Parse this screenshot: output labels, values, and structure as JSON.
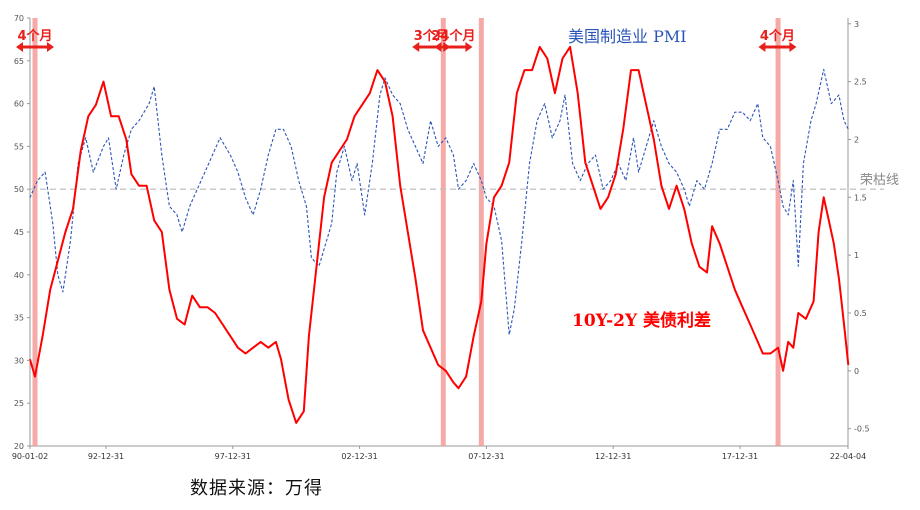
{
  "chart_data": {
    "type": "line",
    "source": "数据来源：万得",
    "x_ticks": [
      "90-01-02",
      "92-12-31",
      "97-12-31",
      "02-12-31",
      "07-12-31",
      "12-12-31",
      "17-12-31",
      "22-04-04"
    ],
    "x_range": [
      "1990-01-02",
      "2022-04-04"
    ],
    "y_left": {
      "ticks": [
        20,
        25,
        30,
        35,
        40,
        45,
        50,
        55,
        60,
        65,
        70
      ],
      "range": [
        20,
        70
      ]
    },
    "y_right": {
      "ticks": [
        -0.5,
        0,
        0.5,
        1,
        1.5,
        2,
        2.5,
        3
      ],
      "range": [
        -0.65,
        3.05
      ]
    },
    "threshold": {
      "value": 50,
      "label": "荣枯线",
      "color": "#bbbbbb"
    },
    "series": [
      {
        "name": "美国制造业 PMI",
        "axis": "left",
        "color": "#2b55b8",
        "style": "dashed",
        "points": [
          [
            1990.0,
            49
          ],
          [
            1990.3,
            51
          ],
          [
            1990.6,
            52
          ],
          [
            1990.9,
            46
          ],
          [
            1991.1,
            40
          ],
          [
            1991.3,
            38
          ],
          [
            1991.6,
            44
          ],
          [
            1991.9,
            53
          ],
          [
            1992.2,
            56
          ],
          [
            1992.5,
            52
          ],
          [
            1992.9,
            55
          ],
          [
            1993.1,
            56
          ],
          [
            1993.4,
            50
          ],
          [
            1993.7,
            54
          ],
          [
            1994.0,
            57
          ],
          [
            1994.3,
            58
          ],
          [
            1994.7,
            60
          ],
          [
            1994.9,
            62
          ],
          [
            1995.2,
            54
          ],
          [
            1995.5,
            48
          ],
          [
            1995.8,
            47
          ],
          [
            1996.0,
            45
          ],
          [
            1996.3,
            48
          ],
          [
            1996.6,
            50
          ],
          [
            1996.9,
            52
          ],
          [
            1997.2,
            54
          ],
          [
            1997.5,
            56
          ],
          [
            1997.9,
            54
          ],
          [
            1998.2,
            52
          ],
          [
            1998.5,
            49
          ],
          [
            1998.8,
            47
          ],
          [
            1999.1,
            50
          ],
          [
            1999.4,
            54
          ],
          [
            1999.7,
            57
          ],
          [
            2000.0,
            57
          ],
          [
            2000.3,
            55
          ],
          [
            2000.6,
            51
          ],
          [
            2000.9,
            48
          ],
          [
            2001.1,
            42
          ],
          [
            2001.4,
            41
          ],
          [
            2001.7,
            44
          ],
          [
            2001.9,
            46
          ],
          [
            2002.1,
            52
          ],
          [
            2002.4,
            55
          ],
          [
            2002.7,
            51
          ],
          [
            2002.9,
            53
          ],
          [
            2003.2,
            47
          ],
          [
            2003.5,
            53
          ],
          [
            2003.8,
            61
          ],
          [
            2004.0,
            63
          ],
          [
            2004.3,
            61
          ],
          [
            2004.6,
            60
          ],
          [
            2004.9,
            57
          ],
          [
            2005.2,
            55
          ],
          [
            2005.5,
            53
          ],
          [
            2005.8,
            58
          ],
          [
            2006.1,
            55
          ],
          [
            2006.4,
            56
          ],
          [
            2006.7,
            54
          ],
          [
            2006.9,
            50
          ],
          [
            2007.2,
            51
          ],
          [
            2007.5,
            53
          ],
          [
            2007.8,
            51
          ],
          [
            2008.0,
            49
          ],
          [
            2008.3,
            48
          ],
          [
            2008.6,
            44
          ],
          [
            2008.9,
            33
          ],
          [
            2009.1,
            36
          ],
          [
            2009.4,
            44
          ],
          [
            2009.7,
            53
          ],
          [
            2010.0,
            58
          ],
          [
            2010.3,
            60
          ],
          [
            2010.6,
            56
          ],
          [
            2010.9,
            58
          ],
          [
            2011.1,
            61
          ],
          [
            2011.4,
            53
          ],
          [
            2011.7,
            51
          ],
          [
            2012.0,
            53
          ],
          [
            2012.3,
            54
          ],
          [
            2012.6,
            50
          ],
          [
            2012.9,
            51
          ],
          [
            2013.2,
            53
          ],
          [
            2013.5,
            51
          ],
          [
            2013.8,
            56
          ],
          [
            2014.0,
            52
          ],
          [
            2014.3,
            55
          ],
          [
            2014.6,
            58
          ],
          [
            2014.9,
            55
          ],
          [
            2015.2,
            53
          ],
          [
            2015.5,
            52
          ],
          [
            2015.8,
            50
          ],
          [
            2016.0,
            48
          ],
          [
            2016.3,
            51
          ],
          [
            2016.6,
            50
          ],
          [
            2016.9,
            53
          ],
          [
            2017.2,
            57
          ],
          [
            2017.5,
            57
          ],
          [
            2017.8,
            59
          ],
          [
            2018.1,
            59
          ],
          [
            2018.4,
            58
          ],
          [
            2018.7,
            60
          ],
          [
            2018.9,
            56
          ],
          [
            2019.2,
            55
          ],
          [
            2019.5,
            51
          ],
          [
            2019.7,
            48
          ],
          [
            2019.9,
            47
          ],
          [
            2020.1,
            51
          ],
          [
            2020.3,
            41
          ],
          [
            2020.5,
            53
          ],
          [
            2020.8,
            58
          ],
          [
            2021.0,
            60
          ],
          [
            2021.3,
            64
          ],
          [
            2021.6,
            60
          ],
          [
            2021.9,
            61
          ],
          [
            2022.1,
            58
          ],
          [
            2022.27,
            57
          ]
        ]
      },
      {
        "name": "10Y-2Y 美债利差",
        "axis": "right",
        "color": "#ff0000",
        "style": "solid",
        "points": [
          [
            1990.0,
            0.1
          ],
          [
            1990.2,
            -0.05
          ],
          [
            1990.5,
            0.3
          ],
          [
            1990.8,
            0.7
          ],
          [
            1991.1,
            0.95
          ],
          [
            1991.4,
            1.2
          ],
          [
            1991.7,
            1.4
          ],
          [
            1992.0,
            1.9
          ],
          [
            1992.3,
            2.2
          ],
          [
            1992.6,
            2.3
          ],
          [
            1992.9,
            2.5
          ],
          [
            1993.2,
            2.2
          ],
          [
            1993.5,
            2.2
          ],
          [
            1993.8,
            2.0
          ],
          [
            1994.0,
            1.7
          ],
          [
            1994.3,
            1.6
          ],
          [
            1994.6,
            1.6
          ],
          [
            1994.9,
            1.3
          ],
          [
            1995.2,
            1.2
          ],
          [
            1995.5,
            0.7
          ],
          [
            1995.8,
            0.45
          ],
          [
            1996.1,
            0.4
          ],
          [
            1996.4,
            0.65
          ],
          [
            1996.7,
            0.55
          ],
          [
            1997.0,
            0.55
          ],
          [
            1997.3,
            0.5
          ],
          [
            1997.6,
            0.4
          ],
          [
            1997.9,
            0.3
          ],
          [
            1998.2,
            0.2
          ],
          [
            1998.5,
            0.15
          ],
          [
            1998.8,
            0.2
          ],
          [
            1999.1,
            0.25
          ],
          [
            1999.4,
            0.2
          ],
          [
            1999.7,
            0.25
          ],
          [
            1999.9,
            0.1
          ],
          [
            2000.2,
            -0.25
          ],
          [
            2000.5,
            -0.45
          ],
          [
            2000.8,
            -0.35
          ],
          [
            2001.0,
            0.3
          ],
          [
            2001.3,
            0.9
          ],
          [
            2001.6,
            1.5
          ],
          [
            2001.9,
            1.8
          ],
          [
            2002.2,
            1.9
          ],
          [
            2002.5,
            2.0
          ],
          [
            2002.8,
            2.2
          ],
          [
            2003.1,
            2.3
          ],
          [
            2003.4,
            2.4
          ],
          [
            2003.7,
            2.6
          ],
          [
            2004.0,
            2.5
          ],
          [
            2004.3,
            2.2
          ],
          [
            2004.6,
            1.6
          ],
          [
            2004.9,
            1.2
          ],
          [
            2005.2,
            0.8
          ],
          [
            2005.5,
            0.35
          ],
          [
            2005.8,
            0.2
          ],
          [
            2006.1,
            0.05
          ],
          [
            2006.4,
            0.0
          ],
          [
            2006.7,
            -0.1
          ],
          [
            2006.9,
            -0.15
          ],
          [
            2007.2,
            -0.05
          ],
          [
            2007.5,
            0.3
          ],
          [
            2007.8,
            0.6
          ],
          [
            2008.0,
            1.1
          ],
          [
            2008.3,
            1.5
          ],
          [
            2008.6,
            1.6
          ],
          [
            2008.9,
            1.8
          ],
          [
            2009.2,
            2.4
          ],
          [
            2009.5,
            2.6
          ],
          [
            2009.8,
            2.6
          ],
          [
            2010.1,
            2.8
          ],
          [
            2010.4,
            2.7
          ],
          [
            2010.7,
            2.4
          ],
          [
            2011.0,
            2.7
          ],
          [
            2011.3,
            2.8
          ],
          [
            2011.6,
            2.4
          ],
          [
            2011.9,
            1.8
          ],
          [
            2012.2,
            1.6
          ],
          [
            2012.5,
            1.4
          ],
          [
            2012.8,
            1.5
          ],
          [
            2013.1,
            1.7
          ],
          [
            2013.4,
            2.1
          ],
          [
            2013.7,
            2.6
          ],
          [
            2014.0,
            2.6
          ],
          [
            2014.3,
            2.3
          ],
          [
            2014.6,
            2.0
          ],
          [
            2014.9,
            1.6
          ],
          [
            2015.2,
            1.4
          ],
          [
            2015.5,
            1.6
          ],
          [
            2015.8,
            1.4
          ],
          [
            2016.1,
            1.1
          ],
          [
            2016.4,
            0.9
          ],
          [
            2016.7,
            0.85
          ],
          [
            2016.9,
            1.25
          ],
          [
            2017.2,
            1.1
          ],
          [
            2017.5,
            0.9
          ],
          [
            2017.8,
            0.7
          ],
          [
            2018.1,
            0.55
          ],
          [
            2018.4,
            0.4
          ],
          [
            2018.7,
            0.25
          ],
          [
            2018.9,
            0.15
          ],
          [
            2019.2,
            0.15
          ],
          [
            2019.5,
            0.2
          ],
          [
            2019.7,
            0.0
          ],
          [
            2019.9,
            0.25
          ],
          [
            2020.1,
            0.2
          ],
          [
            2020.3,
            0.5
          ],
          [
            2020.6,
            0.45
          ],
          [
            2020.9,
            0.6
          ],
          [
            2021.1,
            1.2
          ],
          [
            2021.3,
            1.5
          ],
          [
            2021.5,
            1.3
          ],
          [
            2021.7,
            1.1
          ],
          [
            2021.9,
            0.8
          ],
          [
            2022.0,
            0.6
          ],
          [
            2022.15,
            0.3
          ],
          [
            2022.27,
            0.05
          ]
        ]
      }
    ],
    "inversion_periods": [
      {
        "start": 1990.05,
        "end": 1990.35,
        "label": "4个月"
      },
      {
        "start": 2005.7,
        "end": 2005.95,
        "label": "3个月"
      },
      {
        "start": 2006.05,
        "end": 2008.05,
        "label": "24个月"
      },
      {
        "start": 2019.3,
        "end": 2019.65,
        "label": "4个月"
      }
    ],
    "marker_lines": [
      1990.2,
      2006.3,
      2007.8,
      2019.5
    ]
  }
}
